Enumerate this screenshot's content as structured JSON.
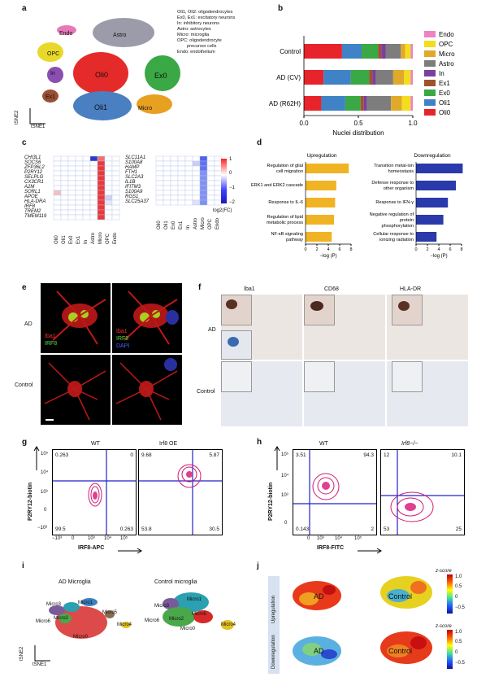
{
  "panels": {
    "a": "a",
    "b": "b",
    "c": "c",
    "d": "d",
    "e": "e",
    "f": "f",
    "g": "g",
    "h": "h",
    "i": "i",
    "j": "j"
  },
  "panel_a": {
    "cluster_labels": [
      "Endo",
      "Astro",
      "OPC",
      "In",
      "Oli0",
      "Ex0",
      "Ex1",
      "Oli1",
      "Micro"
    ],
    "legend_lines": [
      "Oli1, Oli2: oligodendrocytes",
      "Ex0, Ex1: excitatory neurons",
      "In: inhibitory neurons",
      "Astro: astrocytes",
      "Micro: microglia",
      "OPC: oligodendrocyte",
      "precursor cells",
      "Endo: endothelium"
    ],
    "axis_y": "tSNE2",
    "axis_x": "tSNE1"
  },
  "chart_data": {
    "type": "bar",
    "orientation": "horizontal-stacked",
    "categories": [
      "Control",
      "AD (CV)",
      "AD (R62H)"
    ],
    "xlabel": "Nuclei distribution",
    "xlim": [
      0,
      1
    ],
    "xticks": [
      "0.0",
      "0.5",
      "1.0"
    ],
    "legend_placement": "right",
    "series": [
      {
        "name": "Oli0",
        "color": "#e8242b",
        "values": [
          0.35,
          0.18,
          0.16
        ]
      },
      {
        "name": "Oli1",
        "color": "#3f83c6",
        "values": [
          0.18,
          0.25,
          0.22
        ]
      },
      {
        "name": "Ex0",
        "color": "#3aa845",
        "values": [
          0.15,
          0.17,
          0.14
        ]
      },
      {
        "name": "Ex1",
        "color": "#a0522d",
        "values": [
          0.03,
          0.03,
          0.03
        ]
      },
      {
        "name": "In",
        "color": "#7b3fa0",
        "values": [
          0.04,
          0.03,
          0.03
        ]
      },
      {
        "name": "Astro",
        "color": "#7d7d7d",
        "values": [
          0.14,
          0.16,
          0.22
        ]
      },
      {
        "name": "Micro",
        "color": "#e0a92a",
        "values": [
          0.04,
          0.1,
          0.1
        ]
      },
      {
        "name": "OPC",
        "color": "#f2dd1f",
        "values": [
          0.05,
          0.06,
          0.08
        ]
      },
      {
        "name": "Endo",
        "color": "#ee82c3",
        "values": [
          0.02,
          0.02,
          0.02
        ]
      }
    ]
  },
  "panel_c": {
    "genes_left": [
      "CHI3L1",
      "SOCS6",
      "ZFP36L2",
      "P2RY12",
      "SELPLG",
      "CX3CR1",
      "A2M",
      "SORL1",
      "APOE",
      "HLA-DRA",
      "IRF8",
      "TREM2",
      "TMEM119"
    ],
    "genes_right": [
      "SLC11A1",
      "S100A8",
      "HAMP",
      "FTH1",
      "SLC2A3",
      "IL1B",
      "IFITM3",
      "S100A9",
      "RGS1",
      "SLC25A37"
    ],
    "columns": [
      "Oli0",
      "Oli1",
      "Ex0",
      "Ex1",
      "In",
      "Astro",
      "Micro",
      "OPC",
      "Endo"
    ],
    "colorbar_label": "log2(FC)",
    "colorbar_ticks": [
      "1",
      "0",
      "−1",
      "−2"
    ]
  },
  "panel_d": {
    "up_title": "Upregulation",
    "down_title": "Downregulation",
    "up_terms": [
      "Regulation of glial cell migration",
      "ERK1 and ERK2 cascade",
      "Response to IL-6",
      "Regulation of lipid metabolic process",
      "NF-κB signaling pathway"
    ],
    "up_values": [
      7.6,
      5.4,
      5.2,
      5.0,
      4.6
    ],
    "down_terms": [
      "Transition metal-ion homeostasis",
      "Defense response to other organism",
      "Response to IFN-γ",
      "Negative regulation of protein phosphorylation",
      "Cellular response to ionizing radiation"
    ],
    "down_values": [
      8.2,
      7.0,
      5.6,
      4.8,
      3.6
    ],
    "up_ticks": [
      "0",
      "2",
      "4",
      "6",
      "8"
    ],
    "down_ticks": [
      "0",
      "2",
      "4",
      "6",
      "8"
    ],
    "xlabel": "−log (P)",
    "up_color": "#f0b323",
    "down_color": "#2a3aaa"
  },
  "panel_e": {
    "rows": [
      "AD",
      "Control"
    ],
    "legend1": [
      "Iba1",
      "IRF8"
    ],
    "legend2": [
      "Iba1",
      "IRF8",
      "DAPI"
    ]
  },
  "panel_f": {
    "cols": [
      "Iba1",
      "CD68",
      "HLA-DR"
    ],
    "rows": [
      "AD",
      "Control"
    ]
  },
  "panel_g": {
    "titles": [
      "WT",
      "Irf8 OE"
    ],
    "ylabel": "P2RY12-biotin",
    "xlabel": "IRF8-APC",
    "yticks": [
      "10⁵",
      "10⁴",
      "10³",
      "0",
      "−10³"
    ],
    "xticks": [
      "−10³",
      "0",
      "10³",
      "10⁴",
      "10⁵"
    ],
    "wt_quadrants": [
      "0.263",
      "0",
      "99.5",
      "0.263"
    ],
    "oe_quadrants": [
      "9.68",
      "5.87",
      "53.8",
      "30.5"
    ]
  },
  "panel_h": {
    "titles": [
      "WT",
      "Irf8−/−"
    ],
    "ylabel": "P2RY12-biotin",
    "xlabel": "IRF8-FITC",
    "yticks": [
      "10⁵",
      "10⁴",
      "10³",
      "0"
    ],
    "xticks": [
      "0",
      "10³",
      "10⁴",
      "10⁵"
    ],
    "wt_quadrants": [
      "3.51",
      "94.3",
      "0.143",
      "2"
    ],
    "ko_quadrants": [
      "12",
      "10.1",
      "53",
      "25"
    ]
  },
  "panel_i": {
    "titles": [
      "AD Microglia",
      "Control microglia"
    ],
    "ad_labels": [
      "Micro3",
      "Micro1",
      "Micro6",
      "Micro2",
      "Micro5",
      "Micro4",
      "Micro0"
    ],
    "ctrl_labels": [
      "Micro3",
      "Micro1",
      "Micro6",
      "Micro2",
      "Micro5",
      "Micro4",
      "Micro0"
    ],
    "axis_y": "tSNE2",
    "axis_x": "tSNE1"
  },
  "panel_j": {
    "rows": [
      "Upregulation",
      "Downregulation"
    ],
    "labels": [
      "AD",
      "Control"
    ],
    "colorbar_title": "z-score",
    "colorbar_ticks_up": [
      "1.0",
      "0.5",
      "0",
      "−0.5"
    ],
    "colorbar_ticks_down": [
      "1.0",
      "0.5",
      "0",
      "−0.5"
    ]
  }
}
